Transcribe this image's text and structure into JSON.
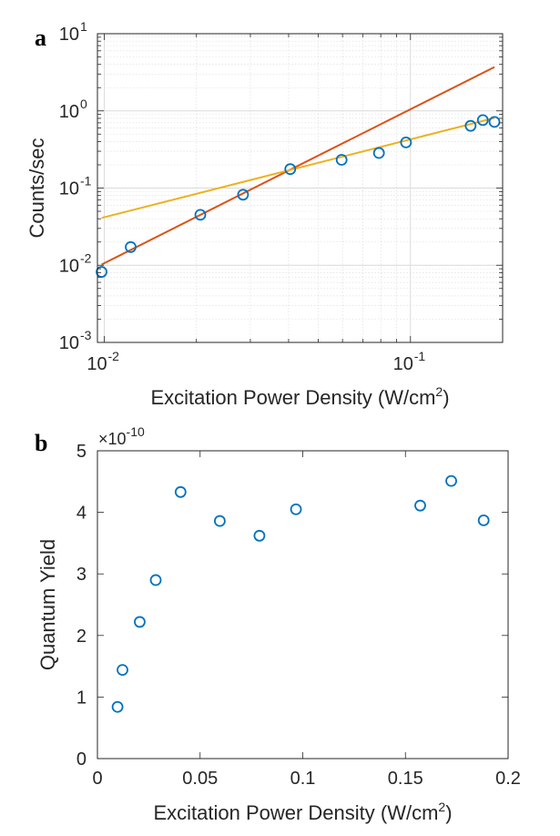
{
  "panels": {
    "a": {
      "letter": "a"
    },
    "b": {
      "letter": "b"
    }
  },
  "chart_data": [
    {
      "panel": "a",
      "type": "scatter",
      "xscale": "log",
      "yscale": "log",
      "xlim": [
        0.0095,
        0.2
      ],
      "ylim": [
        0.001,
        10
      ],
      "grid": true,
      "xlabel_text": "Excitation Power Density (W/cm",
      "xlabel_sup": "2",
      "xlabel_close": ")",
      "ylabel": "Counts/sec",
      "xticks": [
        {
          "value": 0.01,
          "base": "10",
          "exp": "-2"
        },
        {
          "value": 0.1,
          "base": "10",
          "exp": "-1"
        }
      ],
      "yticks": [
        {
          "value": 0.001,
          "base": "10",
          "exp": "-3"
        },
        {
          "value": 0.01,
          "base": "10",
          "exp": "-2"
        },
        {
          "value": 0.1,
          "base": "10",
          "exp": "-1"
        },
        {
          "value": 1,
          "base": "10",
          "exp": "0"
        },
        {
          "value": 10,
          "base": "10",
          "exp": "1"
        }
      ],
      "points": {
        "color": "#0072BD",
        "x": [
          0.0098,
          0.0122,
          0.0206,
          0.0284,
          0.0405,
          0.0596,
          0.0789,
          0.0967,
          0.1572,
          0.1723,
          0.1881
        ],
        "y": [
          0.0082,
          0.0172,
          0.045,
          0.082,
          0.176,
          0.232,
          0.285,
          0.39,
          0.64,
          0.76,
          0.72
        ]
      },
      "lines": [
        {
          "color": "#D95319",
          "x": [
            0.0098,
            0.1881
          ],
          "y": [
            0.0102,
            3.7
          ]
        },
        {
          "color": "#EDB120",
          "x": [
            0.0098,
            0.1881
          ],
          "y": [
            0.041,
            0.81
          ]
        }
      ]
    },
    {
      "panel": "b",
      "type": "scatter",
      "xlim": [
        0,
        0.2
      ],
      "ylim": [
        0,
        5
      ],
      "grid": false,
      "xlabel_text": "Excitation Power Density (W/cm",
      "xlabel_sup": "2",
      "xlabel_close": ")",
      "ylabel": "Quantum Yield",
      "multiplier_base": "×10",
      "multiplier_exp": "-10",
      "xticks": [
        {
          "value": 0,
          "label": "0"
        },
        {
          "value": 0.05,
          "label": "0.05"
        },
        {
          "value": 0.1,
          "label": "0.1"
        },
        {
          "value": 0.15,
          "label": "0.15"
        },
        {
          "value": 0.2,
          "label": "0.2"
        }
      ],
      "yticks": [
        {
          "value": 0,
          "label": "0"
        },
        {
          "value": 1,
          "label": "1"
        },
        {
          "value": 2,
          "label": "2"
        },
        {
          "value": 3,
          "label": "3"
        },
        {
          "value": 4,
          "label": "4"
        },
        {
          "value": 5,
          "label": "5"
        }
      ],
      "points": {
        "color": "#0072BD",
        "x": [
          0.0098,
          0.0122,
          0.0206,
          0.0284,
          0.0405,
          0.0596,
          0.0789,
          0.0967,
          0.1572,
          0.1723,
          0.1881
        ],
        "y": [
          0.84,
          1.44,
          2.22,
          2.9,
          4.33,
          3.86,
          3.62,
          4.05,
          4.11,
          4.51,
          3.87
        ]
      }
    }
  ]
}
